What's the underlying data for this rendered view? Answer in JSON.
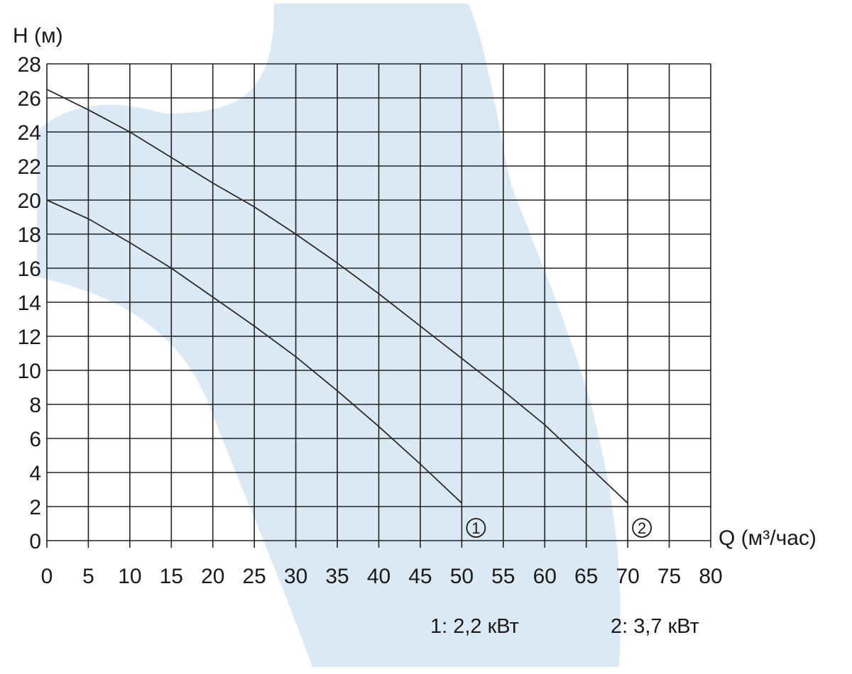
{
  "chart_data": {
    "type": "line",
    "ylabel": "H (м)",
    "xlabel": "Q (м³/час)",
    "xlim": [
      0,
      80
    ],
    "ylim": [
      0,
      28
    ],
    "x_ticks": [
      "0",
      "5",
      "10",
      "15",
      "20",
      "25",
      "30",
      "35",
      "40",
      "45",
      "50",
      "55",
      "60",
      "65",
      "70",
      "75",
      "80"
    ],
    "y_ticks": [
      "0",
      "2",
      "4",
      "6",
      "8",
      "10",
      "12",
      "14",
      "16",
      "18",
      "20",
      "22",
      "24",
      "26",
      "28"
    ],
    "grid": true,
    "series": [
      {
        "name": "1",
        "marker_label": "①",
        "points": [
          [
            0,
            20
          ],
          [
            5,
            18.9
          ],
          [
            10,
            17.5
          ],
          [
            15,
            16
          ],
          [
            20,
            14.3
          ],
          [
            25,
            12.6
          ],
          [
            30,
            10.8
          ],
          [
            35,
            8.8
          ],
          [
            40,
            6.7
          ],
          [
            45,
            4.5
          ],
          [
            50,
            2.2
          ]
        ]
      },
      {
        "name": "2",
        "marker_label": "②",
        "points": [
          [
            0,
            26.5
          ],
          [
            5,
            25.3
          ],
          [
            10,
            24
          ],
          [
            15,
            22.5
          ],
          [
            20,
            21
          ],
          [
            25,
            19.6
          ],
          [
            30,
            18
          ],
          [
            35,
            16.3
          ],
          [
            40,
            14.5
          ],
          [
            45,
            12.6
          ],
          [
            50,
            10.7
          ],
          [
            55,
            8.8
          ],
          [
            60,
            6.8
          ],
          [
            65,
            4.5
          ],
          [
            70,
            2.2
          ]
        ]
      }
    ],
    "legend": [
      "1: 2,2 кВт",
      "2: 3,7 кВт"
    ],
    "colors": {
      "line": "#2a2a2a",
      "grid": "#222222",
      "background_shape": "#dbe9f5"
    }
  }
}
